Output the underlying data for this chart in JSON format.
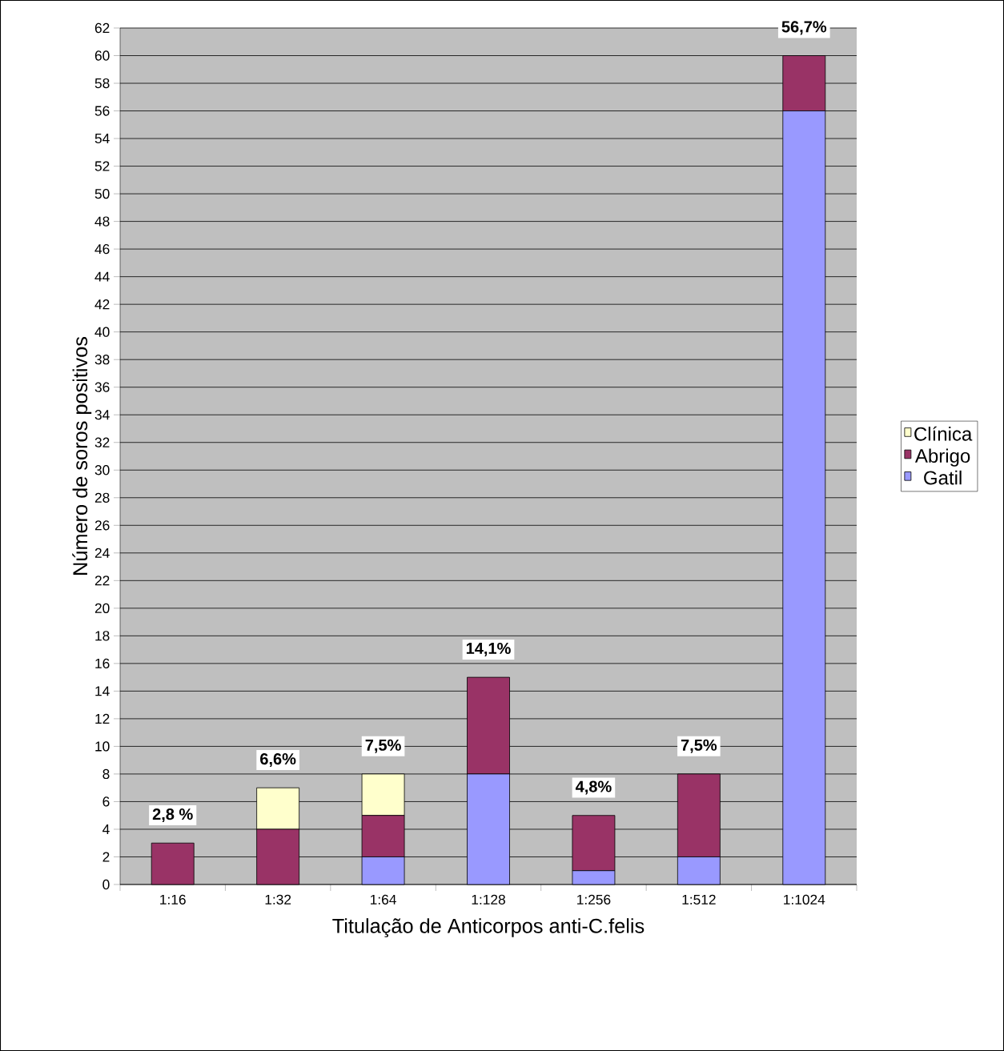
{
  "chart_data": {
    "type": "bar",
    "stacked": true,
    "xlabel": "Titulação de Anticorpos anti-C.felis",
    "ylabel": "Número de soros positivos",
    "categories": [
      "1:16",
      "1:32",
      "1:64",
      "1:128",
      "1:256",
      "1:512",
      "1:1024"
    ],
    "series": [
      {
        "name": "Gatil",
        "color": "#9999ff",
        "values": [
          0,
          0,
          2,
          8,
          1,
          2,
          56
        ]
      },
      {
        "name": "Abrigo",
        "color": "#993366",
        "values": [
          3,
          4,
          3,
          7,
          4,
          6,
          4
        ]
      },
      {
        "name": "Clínica",
        "color": "#ffffcc",
        "values": [
          0,
          3,
          3,
          0,
          0,
          0,
          0
        ]
      }
    ],
    "ylim": [
      0,
      62
    ],
    "yticks": [
      0,
      2,
      4,
      6,
      8,
      10,
      12,
      14,
      16,
      18,
      20,
      22,
      24,
      26,
      28,
      30,
      32,
      34,
      36,
      38,
      40,
      42,
      44,
      46,
      48,
      50,
      52,
      54,
      56,
      58,
      60,
      62
    ],
    "grid": "y",
    "legend": "right",
    "annotations": [
      {
        "text": "2,8 %",
        "x": "1:16",
        "y": 3
      },
      {
        "text": "6,6%",
        "x": "1:32",
        "y": 7
      },
      {
        "text": "7,5%",
        "x": "1:64",
        "y": 8
      },
      {
        "text": "14,1%",
        "x": "1:128",
        "y": 15
      },
      {
        "text": "4,8%",
        "x": "1:256",
        "y": 5
      },
      {
        "text": "7,5%",
        "x": "1:512",
        "y": 8
      },
      {
        "text": "56,7%",
        "x": "1:1024",
        "y": 60
      }
    ]
  }
}
